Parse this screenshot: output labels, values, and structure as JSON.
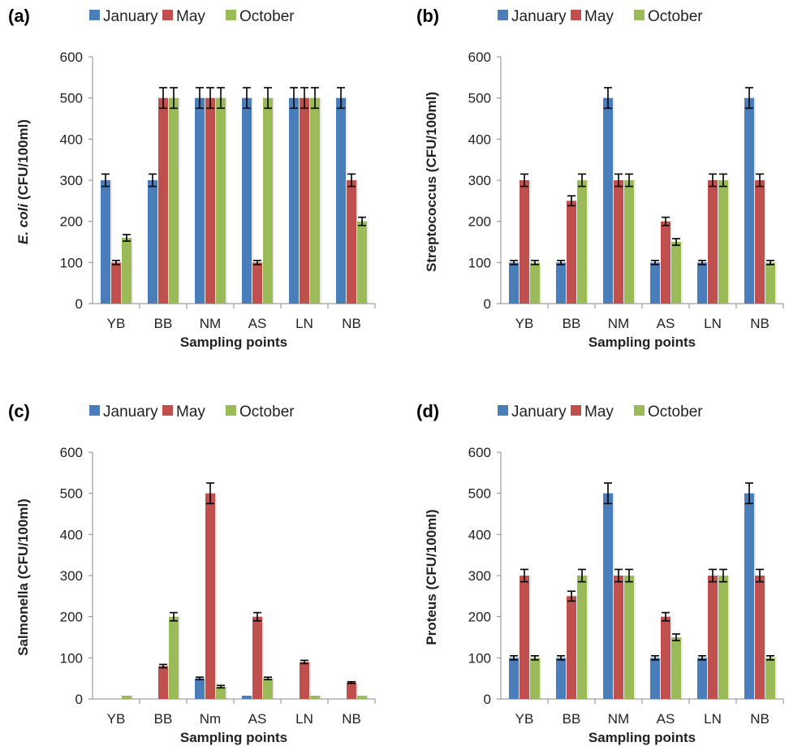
{
  "colors": {
    "January": "#4a7ebb",
    "May": "#c0504d",
    "October": "#9bbb59",
    "error_bar": "#000000",
    "axis": "#888888"
  },
  "chart_data": [
    {
      "type": "bar",
      "panel_label": "(a)",
      "ylabel_italic": "E. coli",
      "ylabel_rest": " (CFU/100ml)",
      "xlabel": "Sampling points",
      "ylim": [
        0,
        600
      ],
      "yticks": [
        "0",
        "100",
        "200",
        "300",
        "400",
        "500",
        "600"
      ],
      "categories": [
        "YB",
        "BB",
        "NM",
        "AS",
        "LN",
        "NB"
      ],
      "legend": "top",
      "series": [
        {
          "name": "January",
          "values": [
            300,
            300,
            500,
            500,
            500,
            500
          ],
          "errors": [
            15,
            15,
            25,
            25,
            25,
            25
          ]
        },
        {
          "name": "May",
          "values": [
            100,
            500,
            500,
            100,
            500,
            300
          ],
          "errors": [
            5,
            25,
            25,
            5,
            25,
            15
          ]
        },
        {
          "name": "October",
          "values": [
            160,
            500,
            500,
            500,
            500,
            200
          ],
          "errors": [
            8,
            25,
            25,
            25,
            25,
            10
          ]
        }
      ]
    },
    {
      "type": "bar",
      "panel_label": "(b)",
      "ylabel_italic": "",
      "ylabel_rest": "Streptococcus (CFU/100ml)",
      "xlabel": "Sampling points",
      "ylim": [
        0,
        600
      ],
      "yticks": [
        "0",
        "100",
        "200",
        "300",
        "400",
        "500",
        "600"
      ],
      "categories": [
        "YB",
        "BB",
        "NM",
        "AS",
        "LN",
        "NB"
      ],
      "legend": "top",
      "series": [
        {
          "name": "January",
          "values": [
            100,
            100,
            500,
            100,
            100,
            500
          ],
          "errors": [
            5,
            5,
            25,
            5,
            5,
            25
          ]
        },
        {
          "name": "May",
          "values": [
            300,
            250,
            300,
            200,
            300,
            300
          ],
          "errors": [
            15,
            12,
            15,
            10,
            15,
            15
          ]
        },
        {
          "name": "October",
          "values": [
            100,
            300,
            300,
            150,
            300,
            100
          ],
          "errors": [
            5,
            15,
            15,
            8,
            15,
            5
          ]
        }
      ]
    },
    {
      "type": "bar",
      "panel_label": "(c)",
      "ylabel_italic": "",
      "ylabel_rest": "Salmonella (CFU/100ml)",
      "xlabel": "Sampling points",
      "ylim": [
        0,
        600
      ],
      "yticks": [
        "0",
        "100",
        "200",
        "300",
        "400",
        "500",
        "600"
      ],
      "categories": [
        "YB",
        "BB",
        "Nm",
        "AS",
        "LN",
        "NB"
      ],
      "legend": "top",
      "series": [
        {
          "name": "January",
          "values": [
            0,
            0,
            50,
            8,
            0,
            0
          ],
          "errors": [
            0,
            0,
            3,
            0,
            0,
            0
          ]
        },
        {
          "name": "May",
          "values": [
            0,
            80,
            500,
            200,
            90,
            40
          ],
          "errors": [
            0,
            4,
            25,
            10,
            4,
            2
          ]
        },
        {
          "name": "October",
          "values": [
            8,
            200,
            30,
            50,
            8,
            8
          ],
          "errors": [
            0,
            10,
            3,
            3,
            0,
            0
          ]
        }
      ]
    },
    {
      "type": "bar",
      "panel_label": "(d)",
      "ylabel_italic": "",
      "ylabel_rest": "Proteus (CFU/100ml)",
      "xlabel": "Sampling points",
      "ylim": [
        0,
        600
      ],
      "yticks": [
        "0",
        "100",
        "200",
        "300",
        "400",
        "500",
        "600"
      ],
      "categories": [
        "YB",
        "BB",
        "NM",
        "AS",
        "LN",
        "NB"
      ],
      "legend": "top",
      "series": [
        {
          "name": "January",
          "values": [
            100,
            100,
            500,
            100,
            100,
            500
          ],
          "errors": [
            5,
            5,
            25,
            5,
            5,
            25
          ]
        },
        {
          "name": "May",
          "values": [
            300,
            250,
            300,
            200,
            300,
            300
          ],
          "errors": [
            15,
            12,
            15,
            10,
            15,
            15
          ]
        },
        {
          "name": "October",
          "values": [
            100,
            300,
            300,
            150,
            300,
            100
          ],
          "errors": [
            5,
            15,
            15,
            8,
            15,
            5
          ]
        }
      ]
    }
  ]
}
